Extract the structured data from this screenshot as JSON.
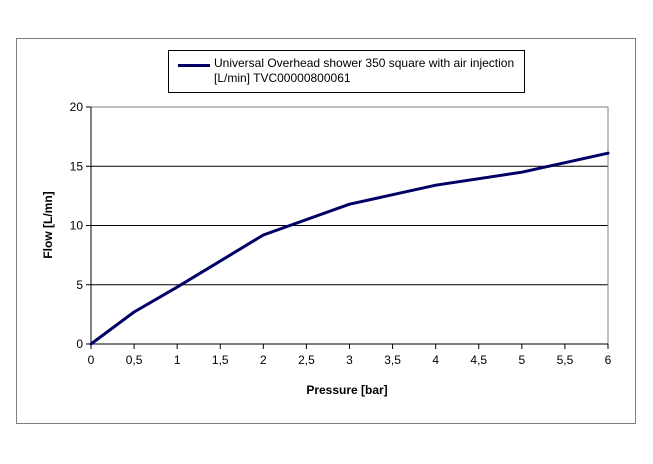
{
  "chart_data": {
    "type": "line",
    "title": "",
    "xlabel": "Pressure [bar]",
    "ylabel": "Flow [L/mn]",
    "xlim": [
      0,
      6
    ],
    "ylim": [
      0,
      20
    ],
    "x_ticks": [
      0,
      0.5,
      1,
      1.5,
      2,
      2.5,
      3,
      3.5,
      4,
      4.5,
      5,
      5.5,
      6
    ],
    "x_tick_labels": [
      "0",
      "0,5",
      "1",
      "1,5",
      "2",
      "2,5",
      "3",
      "3,5",
      "4",
      "4,5",
      "5",
      "5,5",
      "6"
    ],
    "y_ticks": [
      0,
      5,
      10,
      15,
      20
    ],
    "y_tick_labels": [
      "0",
      "5",
      "10",
      "15",
      "20"
    ],
    "grid": "horizontal",
    "legend_position": "top",
    "series": [
      {
        "name": "Universal Overhead shower 350 square with air injection [L/min] TVC00000800061",
        "color": "#000066",
        "x": [
          0,
          0.5,
          1,
          2,
          3,
          4,
          5,
          6
        ],
        "y": [
          0,
          2.7,
          4.8,
          9.2,
          11.8,
          13.4,
          14.5,
          16.1
        ]
      }
    ]
  }
}
